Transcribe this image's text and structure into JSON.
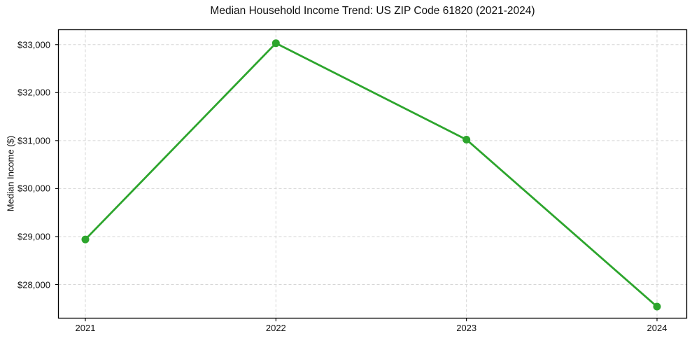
{
  "chart_data": {
    "type": "line",
    "title": "Median Household Income Trend: US ZIP Code 61820 (2021-2024)",
    "xlabel": "",
    "ylabel": "Median Income ($)",
    "categories": [
      "2021",
      "2022",
      "2023",
      "2024"
    ],
    "values": [
      28940,
      33030,
      31020,
      27540
    ],
    "ytick_values": [
      28000,
      29000,
      30000,
      31000,
      32000,
      33000
    ],
    "ytick_labels": [
      "$28,000",
      "$29,000",
      "$30,000",
      "$31,000",
      "$32,000",
      "$33,000"
    ],
    "ylim": [
      27300,
      33310
    ],
    "grid": true,
    "grid_style": "dashed",
    "legend": false,
    "marker": "circle",
    "line_color": "#2da52d",
    "grid_color": "#d5d5d5",
    "axis_color": "#000000",
    "text_color": "#111111"
  }
}
